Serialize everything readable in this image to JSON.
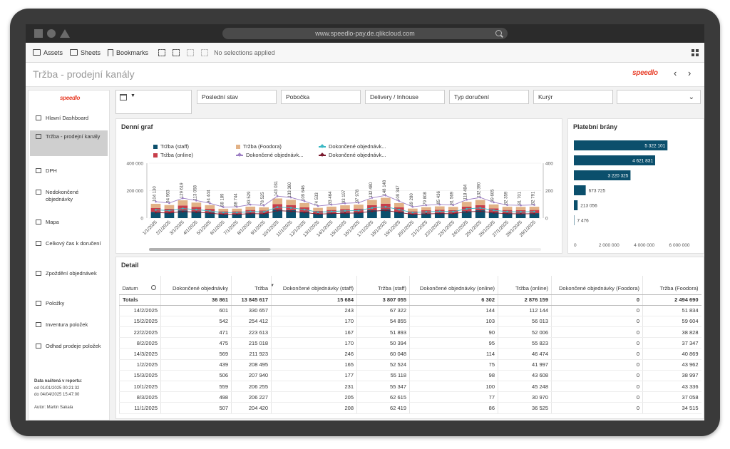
{
  "browser": {
    "url": "www.speedlo-pay.de.qlikcloud.com"
  },
  "toolbar": {
    "assets": "Assets",
    "sheets": "Sheets",
    "bookmarks": "Bookmarks",
    "selections": "No selections applied"
  },
  "sheet": {
    "title": "Tržba - prodejní kanály",
    "logo": "speedlo"
  },
  "sidebar": {
    "logo": "speedlo",
    "items": [
      {
        "label": "Hlavní Dashboard"
      },
      {
        "label": "Tržba - prodejní kanály"
      },
      {
        "label": "DPH"
      },
      {
        "label": "Nedokončené objednávky"
      },
      {
        "label": "Mapa"
      },
      {
        "label": "Celkový čas k doručení"
      },
      {
        "label": "Zpoždění objednávek"
      },
      {
        "label": "Položky"
      },
      {
        "label": "Inventura položek"
      },
      {
        "label": "Odhad prodeje položek"
      }
    ],
    "footer": {
      "loaded_label": "Data načtená v reportu:",
      "from": "od 01/01/2025 00:21:32",
      "to": "do 04/04/2025 15:47:00",
      "author": "Autor: Martin Sakala"
    }
  },
  "filters": [
    "Poslední stav",
    "Pobočka",
    "Delivery / Inhouse",
    "Typ doručení",
    "Kurýr"
  ],
  "daily": {
    "title": "Denní graf",
    "legend": [
      "Tržba (staff)",
      "Tržba (online)",
      "Tržba (Foodora)",
      "Dokončené objednávk...",
      "Dokončené objednávk...",
      "Dokončené objednávk..."
    ],
    "colors": {
      "staff": "#0b4f6c",
      "online": "#c73e4a",
      "foodora": "#e2b287",
      "line1": "#3bb8c4",
      "line2": "#9d7fc4",
      "line3": "#7a1a2e"
    }
  },
  "payments": {
    "title": "Platební brány",
    "values": [
      "5 322 101",
      "4 621 831",
      "3 220 325",
      "673 725",
      "213 056",
      "7 476"
    ],
    "axis": [
      "0",
      "2 000 000",
      "4 000 000",
      "6 000 000"
    ]
  },
  "chart_data": [
    {
      "type": "bar",
      "title": "Denní graf",
      "categories": [
        "1/1/2025",
        "2/1/2025",
        "3/1/2025",
        "4/1/2025",
        "5/1/2025",
        "6/1/2025",
        "7/1/2025",
        "8/1/2025",
        "9/1/2025",
        "10/1/2025",
        "11/1/2025",
        "12/1/2025",
        "13/1/2025",
        "14/1/2025",
        "15/1/2025",
        "16/1/2025",
        "17/1/2025",
        "18/1/2025",
        "19/1/2025",
        "20/1/2025",
        "21/1/2025",
        "22/1/2025",
        "23/1/2025",
        "24/1/2025",
        "25/1/2025",
        "26/1/2025",
        "27/1/2025",
        "28/1/2025",
        "29/1/2025"
      ],
      "bar_labels": [
        "104 130",
        "94 963",
        "129 619",
        "113 058",
        "94 444",
        "68 189",
        "68 744",
        "83 529",
        "78 525",
        "143 031",
        "133 360",
        "109 646",
        "74 533",
        "83 464",
        "93 197",
        "97 978",
        "132 480",
        "148 148",
        "109 347",
        "69 280",
        "79 808",
        "85 436",
        "81 569",
        "118 484",
        "132 390",
        "99 605",
        "82 359",
        "81 701",
        "82 791"
      ],
      "series": [
        {
          "name": "Tržba (staff)",
          "values": [
            45000,
            41000,
            56000,
            49000,
            41000,
            30000,
            30000,
            36000,
            34000,
            62000,
            58000,
            47000,
            32000,
            36000,
            40000,
            42000,
            57000,
            64000,
            47000,
            30000,
            35000,
            37000,
            35000,
            51000,
            57000,
            43000,
            36000,
            35000,
            36000
          ]
        },
        {
          "name": "Tržba (online)",
          "values": [
            29000,
            27000,
            36000,
            32000,
            26000,
            19000,
            19000,
            23000,
            22000,
            40000,
            37000,
            31000,
            21000,
            23000,
            26000,
            27000,
            37000,
            41000,
            31000,
            19000,
            22000,
            24000,
            23000,
            33000,
            37000,
            28000,
            23000,
            23000,
            23000
          ]
        },
        {
          "name": "Tržba (Foodora)",
          "values": [
            30130,
            26963,
            37619,
            32058,
            27444,
            19189,
            19744,
            24529,
            22525,
            41031,
            38360,
            31646,
            21533,
            24464,
            27197,
            28978,
            38480,
            43148,
            31347,
            20280,
            22808,
            24436,
            23569,
            34484,
            38390,
            28605,
            23359,
            23701,
            23791
          ]
        }
      ],
      "line_series": [
        {
          "name": "Dokončené objednávk...",
          "values": [
            60,
            55,
            70,
            62,
            52,
            40,
            40,
            48,
            45,
            80,
            75,
            62,
            43,
            48,
            53,
            55,
            74,
            82,
            62,
            40,
            46,
            49,
            47,
            67,
            74,
            57,
            47,
            46,
            47
          ]
        },
        {
          "name": "Dokončené objednávk...",
          "values": [
            120,
            110,
            145,
            128,
            108,
            80,
            82,
            98,
            92,
            160,
            150,
            124,
            88,
            98,
            108,
            112,
            148,
            165,
            124,
            82,
            94,
            99,
            95,
            134,
            150,
            115,
            95,
            93,
            96
          ]
        },
        {
          "name": "Dokončené objednávk...",
          "values": [
            40,
            37,
            48,
            43,
            36,
            27,
            27,
            33,
            31,
            54,
            50,
            41,
            29,
            33,
            36,
            37,
            50,
            56,
            41,
            27,
            31,
            33,
            32,
            45,
            50,
            38,
            32,
            31,
            32
          ]
        }
      ],
      "ylim": [
        0,
        400000
      ],
      "y2lim": [
        0,
        400
      ],
      "yticks": [
        "0",
        "200 000",
        "400 000"
      ],
      "y2ticks": [
        "0",
        "200",
        "400"
      ]
    },
    {
      "type": "bar",
      "title": "Platební brány",
      "orientation": "horizontal",
      "values": [
        5322101,
        4621831,
        3220325,
        673725,
        213056,
        7476
      ],
      "xlim": [
        0,
        6000000
      ]
    }
  ],
  "detail": {
    "title": "Detail",
    "columns": [
      "Datum",
      "Dokončené objednávky",
      "Tržba",
      "Dokončené objednávky (staff)",
      "Tržba (staff)",
      "Dokončené objednávky (online)",
      "Tržba (online)",
      "Dokončené objednávky (Foodora)",
      "Tržba (Foodora)"
    ],
    "totals": [
      "Totals",
      "36 861",
      "13 845 617",
      "15 684",
      "3 807 055",
      "6 302",
      "2 876 159",
      "0",
      "2 494 690"
    ],
    "rows": [
      [
        "14/2/2025",
        "601",
        "330 657",
        "243",
        "67 322",
        "144",
        "112 144",
        "0",
        "51 834"
      ],
      [
        "15/2/2025",
        "542",
        "254 412",
        "170",
        "54 855",
        "103",
        "56 013",
        "0",
        "59 604"
      ],
      [
        "22/2/2025",
        "471",
        "223 613",
        "167",
        "51 893",
        "90",
        "52 006",
        "0",
        "38 828"
      ],
      [
        "8/2/2025",
        "475",
        "215 018",
        "170",
        "50 394",
        "95",
        "55 823",
        "0",
        "37 347"
      ],
      [
        "14/3/2025",
        "569",
        "211 923",
        "246",
        "60 048",
        "114",
        "46 474",
        "0",
        "40 869"
      ],
      [
        "1/2/2025",
        "439",
        "208 495",
        "165",
        "52 524",
        "75",
        "41 997",
        "0",
        "43 962"
      ],
      [
        "15/3/2025",
        "506",
        "207 940",
        "177",
        "55 118",
        "98",
        "43 608",
        "0",
        "38 997"
      ],
      [
        "10/1/2025",
        "559",
        "206 255",
        "231",
        "55 347",
        "100",
        "45 248",
        "0",
        "43 336"
      ],
      [
        "8/3/2025",
        "498",
        "206 227",
        "205",
        "62 615",
        "77",
        "30 970",
        "0",
        "37 058"
      ],
      [
        "11/1/2025",
        "507",
        "204 420",
        "208",
        "62 419",
        "86",
        "36 525",
        "0",
        "34 515"
      ]
    ]
  }
}
